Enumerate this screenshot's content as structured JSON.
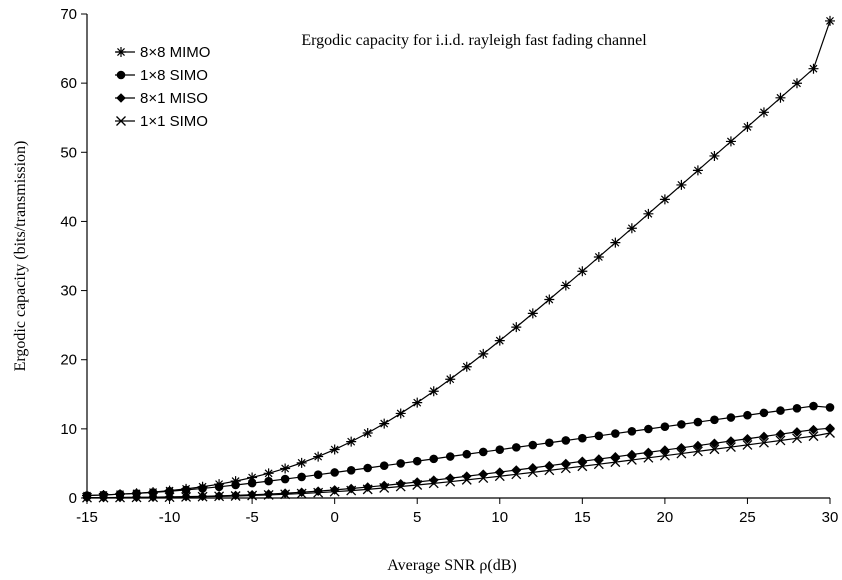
{
  "chart_data": {
    "type": "line",
    "title": "Ergodic capacity for i.i.d. rayleigh fast fading channel",
    "xlabel": "Average SNR ρ(dB)",
    "ylabel": "Ergodic capacity (bits/transmission)",
    "xlim": [
      -15,
      30
    ],
    "ylim": [
      0,
      70
    ],
    "x_ticks": [
      "-15",
      "-10",
      "-5",
      "0",
      "5",
      "10",
      "15",
      "20",
      "25",
      "30"
    ],
    "y_ticks": [
      "0",
      "10",
      "20",
      "30",
      "40",
      "50",
      "60",
      "70"
    ],
    "grid": false,
    "legend_position": "top-left",
    "x": [
      -15,
      -14,
      -13,
      -12,
      -11,
      -10,
      -9,
      -8,
      -7,
      -6,
      -5,
      -4,
      -3,
      -2,
      -1,
      0,
      1,
      2,
      3,
      4,
      5,
      6,
      7,
      8,
      9,
      10,
      11,
      12,
      13,
      14,
      15,
      16,
      17,
      18,
      19,
      20,
      21,
      22,
      23,
      24,
      25,
      26,
      27,
      28,
      29,
      30
    ],
    "series": [
      {
        "name": "8×8 MIMO",
        "marker": "asterisk",
        "values": [
          0.35,
          0.44,
          0.55,
          0.68,
          0.85,
          1.07,
          1.32,
          1.63,
          2.0,
          2.44,
          2.96,
          3.57,
          4.27,
          5.08,
          5.99,
          7.01,
          8.15,
          9.4,
          10.76,
          12.23,
          13.79,
          15.44,
          17.18,
          18.98,
          20.84,
          22.76,
          24.71,
          26.7,
          28.71,
          30.74,
          32.79,
          34.86,
          36.93,
          39.01,
          41.1,
          43.19,
          45.28,
          47.38,
          49.47,
          51.57,
          53.67,
          55.78,
          57.88,
          59.98,
          62.09,
          69.0
        ]
      },
      {
        "name": "1×8 SIMO",
        "marker": "circle",
        "values": [
          0.36,
          0.44,
          0.55,
          0.67,
          0.81,
          0.98,
          1.17,
          1.38,
          1.62,
          1.88,
          2.15,
          2.44,
          2.74,
          3.05,
          3.37,
          3.69,
          4.01,
          4.34,
          4.67,
          5.0,
          5.33,
          5.66,
          6.0,
          6.33,
          6.66,
          6.99,
          7.32,
          7.66,
          7.99,
          8.32,
          8.65,
          8.99,
          9.32,
          9.65,
          9.98,
          10.31,
          10.65,
          10.98,
          11.31,
          11.64,
          11.97,
          12.31,
          12.64,
          12.97,
          13.3,
          13.1
        ]
      },
      {
        "name": "8×1 MISO",
        "marker": "diamond",
        "values": [
          0.05,
          0.06,
          0.08,
          0.1,
          0.12,
          0.16,
          0.2,
          0.24,
          0.31,
          0.38,
          0.47,
          0.57,
          0.69,
          0.83,
          0.99,
          1.17,
          1.37,
          1.58,
          1.81,
          2.06,
          2.31,
          2.58,
          2.86,
          3.15,
          3.44,
          3.74,
          4.05,
          4.36,
          4.67,
          4.99,
          5.31,
          5.63,
          5.95,
          6.28,
          6.6,
          6.93,
          7.26,
          7.58,
          7.91,
          8.24,
          8.57,
          8.9,
          9.23,
          9.56,
          9.88,
          10.1
        ]
      },
      {
        "name": "1×1 SIMO",
        "marker": "x",
        "values": [
          0.04,
          0.05,
          0.06,
          0.08,
          0.1,
          0.12,
          0.15,
          0.19,
          0.24,
          0.29,
          0.36,
          0.44,
          0.53,
          0.64,
          0.77,
          0.91,
          1.07,
          1.25,
          1.45,
          1.66,
          1.88,
          2.12,
          2.36,
          2.62,
          2.88,
          3.15,
          3.43,
          3.71,
          4.0,
          4.29,
          4.59,
          4.89,
          5.19,
          5.5,
          5.81,
          6.12,
          6.43,
          6.74,
          7.05,
          7.37,
          7.68,
          8.0,
          8.32,
          8.63,
          8.95,
          9.4
        ]
      }
    ]
  }
}
